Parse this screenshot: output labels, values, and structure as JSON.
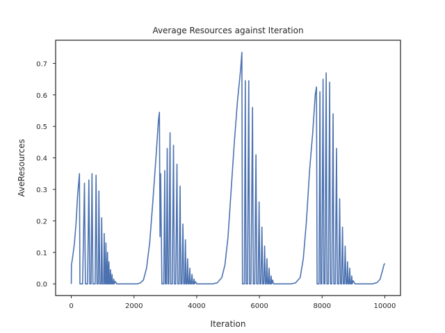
{
  "chart_data": {
    "type": "line",
    "title": "Average Resources against Iteration",
    "xlabel": "Iteration",
    "ylabel": "AveResources",
    "xlim": [
      -500,
      10500
    ],
    "ylim": [
      -0.037,
      0.7735
    ],
    "x_ticks": [
      0,
      2000,
      4000,
      6000,
      8000,
      10000
    ],
    "x_tick_labels": [
      "0",
      "2000",
      "4000",
      "6000",
      "8000",
      "10000"
    ],
    "y_ticks": [
      0.0,
      0.1,
      0.2,
      0.3,
      0.4,
      0.5,
      0.6,
      0.7
    ],
    "y_tick_labels": [
      "0.0",
      "0.1",
      "0.2",
      "0.3",
      "0.4",
      "0.5",
      "0.6",
      "0.7"
    ],
    "grid": false,
    "line_color": "#4c72b0",
    "series": [
      {
        "name": "",
        "points": [
          [
            0,
            0.0
          ],
          [
            5,
            0.06
          ],
          [
            50,
            0.09
          ],
          [
            100,
            0.13
          ],
          [
            150,
            0.19
          ],
          [
            200,
            0.28
          ],
          [
            260,
            0.35
          ],
          [
            275,
            0.0
          ],
          [
            360,
            0.0
          ],
          [
            420,
            0.32
          ],
          [
            450,
            0.0
          ],
          [
            520,
            0.0
          ],
          [
            560,
            0.33
          ],
          [
            590,
            0.0
          ],
          [
            630,
            0.0
          ],
          [
            660,
            0.35
          ],
          [
            690,
            0.0
          ],
          [
            760,
            0.0
          ],
          [
            790,
            0.345
          ],
          [
            820,
            0.0
          ],
          [
            860,
            0.0
          ],
          [
            880,
            0.295
          ],
          [
            910,
            0.0
          ],
          [
            950,
            0.0
          ],
          [
            970,
            0.21
          ],
          [
            990,
            0.0
          ],
          [
            1030,
            0.0
          ],
          [
            1050,
            0.16
          ],
          [
            1070,
            0.0
          ],
          [
            1090,
            0.0
          ],
          [
            1105,
            0.13
          ],
          [
            1120,
            0.0
          ],
          [
            1140,
            0.0
          ],
          [
            1155,
            0.1
          ],
          [
            1170,
            0.0
          ],
          [
            1185,
            0.0
          ],
          [
            1200,
            0.07
          ],
          [
            1215,
            0.0
          ],
          [
            1235,
            0.0
          ],
          [
            1250,
            0.045
          ],
          [
            1265,
            0.0
          ],
          [
            1285,
            0.0
          ],
          [
            1300,
            0.03
          ],
          [
            1315,
            0.0
          ],
          [
            1340,
            0.0
          ],
          [
            1355,
            0.015
          ],
          [
            1370,
            0.0
          ],
          [
            1400,
            0.008
          ],
          [
            1450,
            0.0
          ],
          [
            2100,
            0.0
          ],
          [
            2200,
            0.003
          ],
          [
            2300,
            0.012
          ],
          [
            2400,
            0.05
          ],
          [
            2500,
            0.13
          ],
          [
            2600,
            0.26
          ],
          [
            2700,
            0.4
          ],
          [
            2780,
            0.52
          ],
          [
            2810,
            0.545
          ],
          [
            2830,
            0.15
          ],
          [
            2850,
            0.35
          ],
          [
            2890,
            0.0
          ],
          [
            2950,
            0.0
          ],
          [
            2980,
            0.36
          ],
          [
            3000,
            0.0
          ],
          [
            3030,
            0.0
          ],
          [
            3060,
            0.43
          ],
          [
            3080,
            0.0
          ],
          [
            3110,
            0.0
          ],
          [
            3150,
            0.48
          ],
          [
            3170,
            0.0
          ],
          [
            3220,
            0.0
          ],
          [
            3260,
            0.44
          ],
          [
            3285,
            0.0
          ],
          [
            3330,
            0.0
          ],
          [
            3370,
            0.38
          ],
          [
            3395,
            0.0
          ],
          [
            3440,
            0.0
          ],
          [
            3470,
            0.31
          ],
          [
            3495,
            0.0
          ],
          [
            3530,
            0.0
          ],
          [
            3560,
            0.19
          ],
          [
            3585,
            0.0
          ],
          [
            3620,
            0.0
          ],
          [
            3640,
            0.14
          ],
          [
            3660,
            0.0
          ],
          [
            3690,
            0.0
          ],
          [
            3710,
            0.08
          ],
          [
            3730,
            0.0
          ],
          [
            3760,
            0.0
          ],
          [
            3780,
            0.05
          ],
          [
            3800,
            0.0
          ],
          [
            3830,
            0.0
          ],
          [
            3850,
            0.03
          ],
          [
            3870,
            0.0
          ],
          [
            3900,
            0.0
          ],
          [
            3915,
            0.015
          ],
          [
            3930,
            0.0
          ],
          [
            3960,
            0.007
          ],
          [
            4000,
            0.0
          ],
          [
            4500,
            0.0
          ],
          [
            4650,
            0.003
          ],
          [
            4800,
            0.02
          ],
          [
            4900,
            0.06
          ],
          [
            5000,
            0.15
          ],
          [
            5100,
            0.3
          ],
          [
            5200,
            0.45
          ],
          [
            5300,
            0.58
          ],
          [
            5400,
            0.68
          ],
          [
            5440,
            0.735
          ],
          [
            5460,
            0.0
          ],
          [
            5520,
            0.0
          ],
          [
            5550,
            0.645
          ],
          [
            5575,
            0.0
          ],
          [
            5620,
            0.0
          ],
          [
            5660,
            0.645
          ],
          [
            5685,
            0.0
          ],
          [
            5730,
            0.0
          ],
          [
            5780,
            0.56
          ],
          [
            5805,
            0.0
          ],
          [
            5850,
            0.0
          ],
          [
            5890,
            0.41
          ],
          [
            5915,
            0.0
          ],
          [
            5960,
            0.0
          ],
          [
            5990,
            0.26
          ],
          [
            6015,
            0.0
          ],
          [
            6050,
            0.0
          ],
          [
            6080,
            0.18
          ],
          [
            6105,
            0.0
          ],
          [
            6140,
            0.0
          ],
          [
            6165,
            0.12
          ],
          [
            6190,
            0.0
          ],
          [
            6220,
            0.0
          ],
          [
            6240,
            0.08
          ],
          [
            6260,
            0.0
          ],
          [
            6290,
            0.0
          ],
          [
            6310,
            0.05
          ],
          [
            6330,
            0.0
          ],
          [
            6360,
            0.0
          ],
          [
            6375,
            0.025
          ],
          [
            6390,
            0.0
          ],
          [
            6420,
            0.012
          ],
          [
            6450,
            0.0
          ],
          [
            7000,
            0.0
          ],
          [
            7150,
            0.003
          ],
          [
            7300,
            0.02
          ],
          [
            7400,
            0.08
          ],
          [
            7500,
            0.2
          ],
          [
            7600,
            0.36
          ],
          [
            7700,
            0.48
          ],
          [
            7780,
            0.6
          ],
          [
            7820,
            0.625
          ],
          [
            7840,
            0.0
          ],
          [
            7900,
            0.0
          ],
          [
            7930,
            0.61
          ],
          [
            7955,
            0.0
          ],
          [
            7990,
            0.0
          ],
          [
            8030,
            0.65
          ],
          [
            8055,
            0.0
          ],
          [
            8090,
            0.0
          ],
          [
            8130,
            0.67
          ],
          [
            8155,
            0.0
          ],
          [
            8200,
            0.0
          ],
          [
            8240,
            0.64
          ],
          [
            8265,
            0.0
          ],
          [
            8310,
            0.0
          ],
          [
            8350,
            0.54
          ],
          [
            8375,
            0.0
          ],
          [
            8420,
            0.0
          ],
          [
            8460,
            0.43
          ],
          [
            8485,
            0.0
          ],
          [
            8530,
            0.0
          ],
          [
            8560,
            0.27
          ],
          [
            8585,
            0.0
          ],
          [
            8620,
            0.0
          ],
          [
            8650,
            0.18
          ],
          [
            8675,
            0.0
          ],
          [
            8710,
            0.0
          ],
          [
            8735,
            0.12
          ],
          [
            8760,
            0.0
          ],
          [
            8790,
            0.0
          ],
          [
            8810,
            0.07
          ],
          [
            8830,
            0.0
          ],
          [
            8860,
            0.0
          ],
          [
            8880,
            0.05
          ],
          [
            8900,
            0.0
          ],
          [
            8930,
            0.0
          ],
          [
            8945,
            0.025
          ],
          [
            8960,
            0.0
          ],
          [
            8990,
            0.01
          ],
          [
            9050,
            0.0
          ],
          [
            9600,
            0.0
          ],
          [
            9750,
            0.004
          ],
          [
            9850,
            0.015
          ],
          [
            9920,
            0.04
          ],
          [
            9970,
            0.06
          ],
          [
            10000,
            0.065
          ]
        ]
      }
    ]
  }
}
